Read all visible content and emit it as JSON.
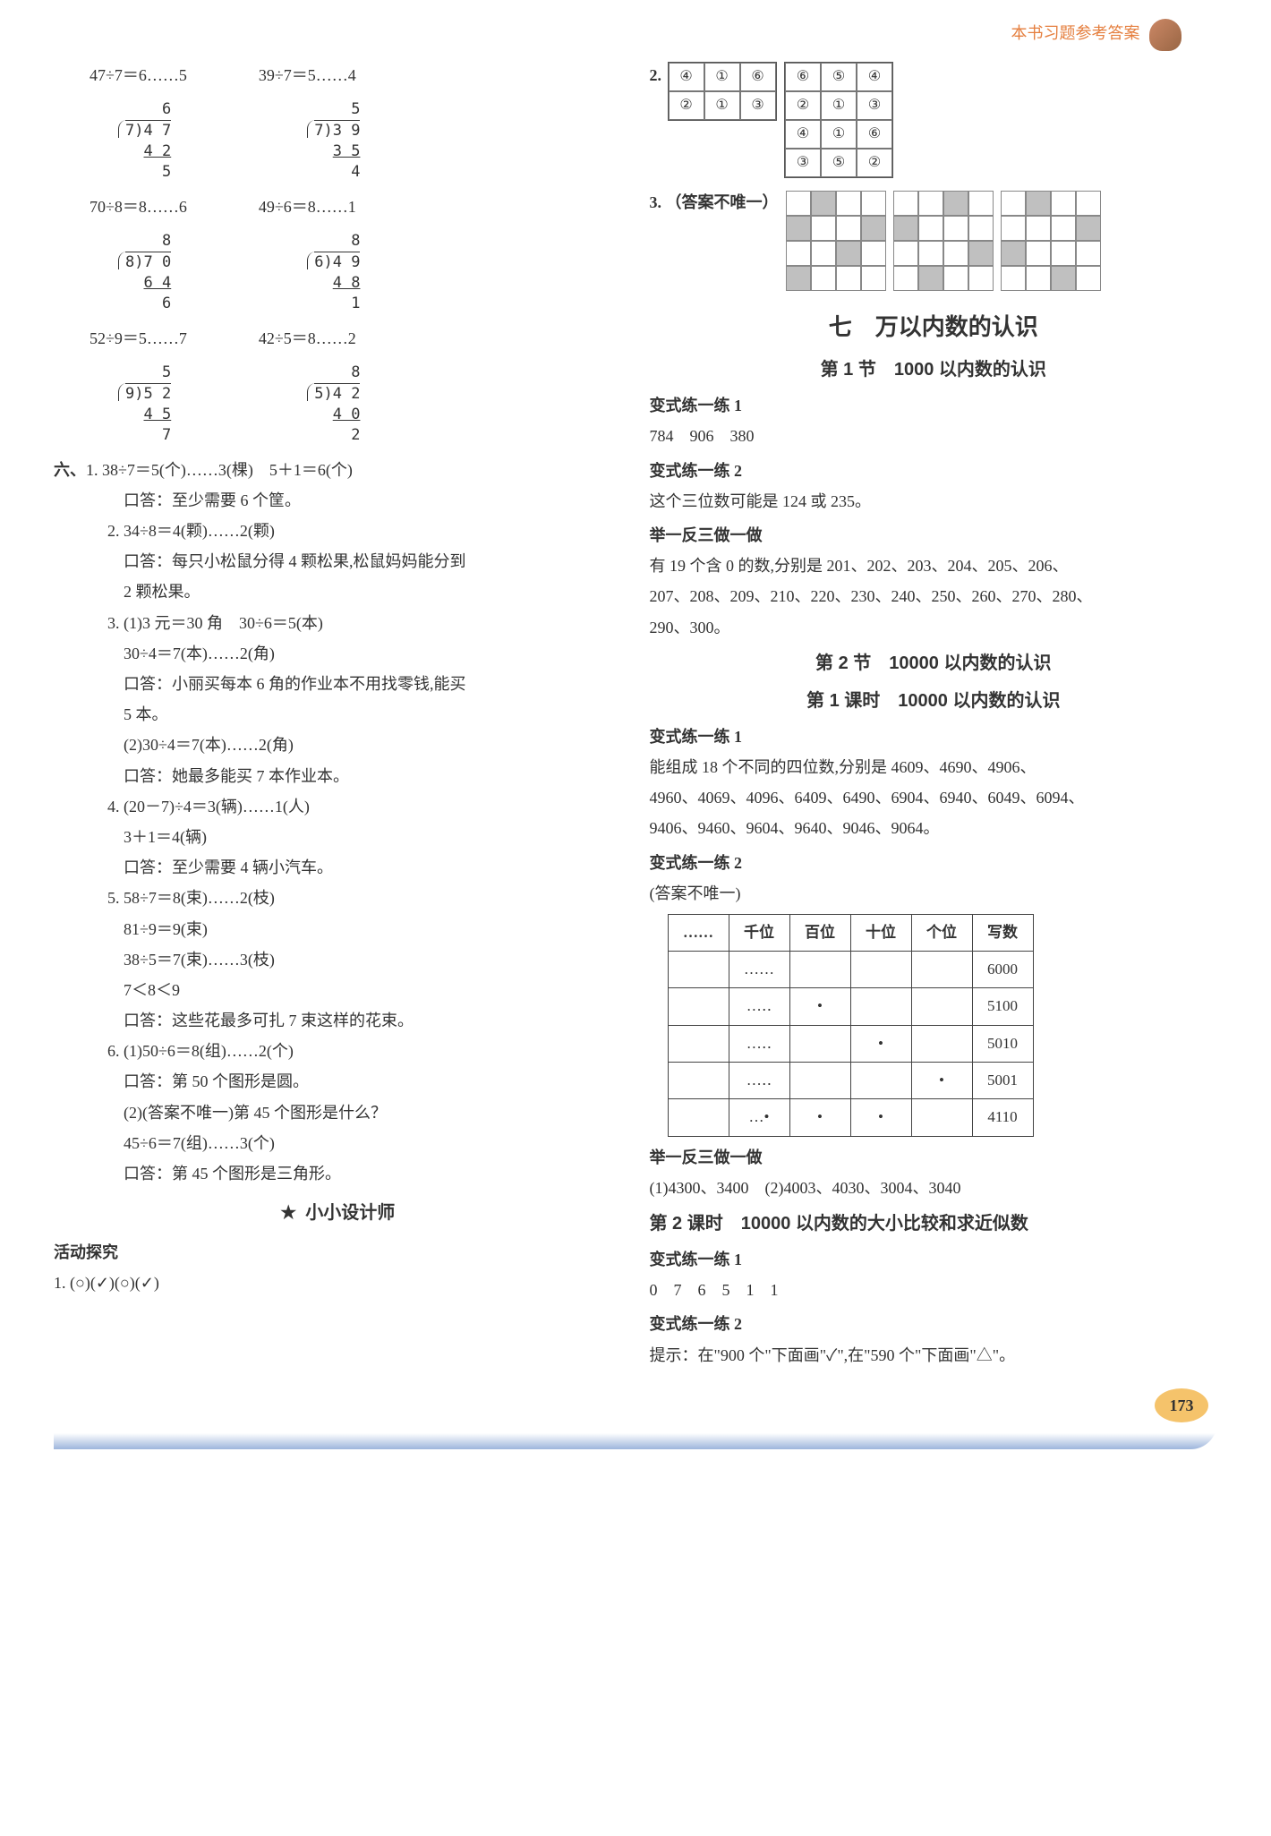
{
  "header": {
    "text": "本书习题参考答案"
  },
  "left": {
    "divRow1": {
      "a": "47÷7＝6……5",
      "b": "39÷7＝5……4"
    },
    "ld1a": {
      "q": "6",
      "dv": "7",
      "dd": "4 7",
      "s": "4 2",
      "r": "5"
    },
    "ld1b": {
      "q": "5",
      "dv": "7",
      "dd": "3 9",
      "s": "3 5",
      "r": "4"
    },
    "divRow2": {
      "a": "70÷8＝8……6",
      "b": "49÷6＝8……1"
    },
    "ld2a": {
      "q": "8",
      "dv": "8",
      "dd": "7 0",
      "s": "6 4",
      "r": "6"
    },
    "ld2b": {
      "q": "8",
      "dv": "6",
      "dd": "4 9",
      "s": "4 8",
      "r": "1"
    },
    "divRow3": {
      "a": "52÷9＝5……7",
      "b": "42÷5＝8……2"
    },
    "ld3a": {
      "q": "5",
      "dv": "9",
      "dd": "5 2",
      "s": "4 5",
      "r": "7"
    },
    "ld3b": {
      "q": "8",
      "dv": "5",
      "dd": "4 2",
      "s": "4 0",
      "r": "2"
    },
    "six": {
      "label": "六、",
      "q1a": "1. 38÷7＝5(个)……3(棵)　5＋1＝6(个)",
      "q1b": "口答：至少需要 6 个筐。",
      "q2a": "2. 34÷8＝4(颗)……2(颗)",
      "q2b": "口答：每只小松鼠分得 4 颗松果,松鼠妈妈能分到",
      "q2c": "2 颗松果。",
      "q3a": "3. (1)3 元＝30 角　30÷6＝5(本)",
      "q3b": "30÷4＝7(本)……2(角)",
      "q3c": "口答：小丽买每本 6 角的作业本不用找零钱,能买",
      "q3d": "5 本。",
      "q3e": "(2)30÷4＝7(本)……2(角)",
      "q3f": "口答：她最多能买 7 本作业本。",
      "q4a": "4. (20－7)÷4＝3(辆)……1(人)",
      "q4b": "3＋1＝4(辆)",
      "q4c": "口答：至少需要 4 辆小汽车。",
      "q5a": "5. 58÷7＝8(束)……2(枝)",
      "q5b": "81÷9＝9(束)",
      "q5c": "38÷5＝7(束)……3(枝)",
      "q5d": "7＜8＜9",
      "q5e": "口答：这些花最多可扎 7 束这样的花束。",
      "q6a": "6. (1)50÷6＝8(组)……2(个)",
      "q6b": "口答：第 50 个图形是圆。",
      "q6c": "(2)(答案不唯一)第 45 个图形是什么？",
      "q6d": "45÷6＝7(组)……3(个)",
      "q6e": "口答：第 45 个图形是三角形。"
    },
    "designTitle": "小小设计师",
    "activityLabel": "活动探究",
    "act1": "1. (○)(✓)(○)(✓)"
  },
  "right": {
    "q2label": "2.",
    "grid1": [
      [
        "④",
        "①",
        "⑥"
      ],
      [
        "②",
        "①",
        "③"
      ]
    ],
    "grid2": [
      [
        "⑥",
        "⑤",
        "④"
      ],
      [
        "②",
        "①",
        "③"
      ],
      [
        "④",
        "①",
        "⑥"
      ],
      [
        "③",
        "⑤",
        "②"
      ]
    ],
    "q3label": "3. （答案不唯一）",
    "pattern_colors": {
      "p1": [
        [
          0,
          1,
          0,
          0
        ],
        [
          1,
          0,
          0,
          1
        ],
        [
          0,
          0,
          1,
          0
        ],
        [
          1,
          0,
          0,
          0
        ]
      ],
      "p2": [
        [
          0,
          0,
          1,
          0
        ],
        [
          1,
          0,
          0,
          0
        ],
        [
          0,
          0,
          0,
          1
        ],
        [
          0,
          1,
          0,
          0
        ]
      ],
      "p3": [
        [
          0,
          1,
          0,
          0
        ],
        [
          0,
          0,
          0,
          1
        ],
        [
          1,
          0,
          0,
          0
        ],
        [
          0,
          0,
          1,
          0
        ]
      ]
    },
    "chapterTitle": "七　万以内数的认识",
    "sec1Title": "第 1 节　1000 以内数的认识",
    "v1Label": "变式练一练 1",
    "v1": "784　906　380",
    "v2Label": "变式练一练 2",
    "v2": "这个三位数可能是 124 或 235。",
    "j1Label": "举一反三做一做",
    "j1a": "有 19 个含 0 的数,分别是 201、202、203、204、205、206、",
    "j1b": "207、208、209、210、220、230、240、250、260、270、280、",
    "j1c": "290、300。",
    "sec2Title": "第 2 节　10000 以内数的认识",
    "les1Title": "第 1 课时　10000 以内数的认识",
    "v21Label": "变式练一练 1",
    "v21a": "能组成 18 个不同的四位数,分别是 4609、4690、4906、",
    "v21b": "4960、4069、4096、6409、6490、6904、6940、6049、6094、",
    "v21c": "9406、9460、9604、9640、9046、9064。",
    "v22Label": "变式练一练 2",
    "v22a": "(答案不唯一)",
    "table": {
      "headers": [
        "……",
        "千位",
        "百位",
        "十位",
        "个位",
        "写数"
      ],
      "rows": [
        [
          "",
          "……",
          "",
          "",
          "",
          "6000"
        ],
        [
          "",
          "…‥",
          "•",
          "",
          "",
          "5100"
        ],
        [
          "",
          "…‥",
          "",
          "•",
          "",
          "5010"
        ],
        [
          "",
          "…‥",
          "",
          "",
          "•",
          "5001"
        ],
        [
          "",
          "…•",
          "•",
          "•",
          "",
          "4110"
        ]
      ]
    },
    "j2Label": "举一反三做一做",
    "j2": "(1)4300、3400　(2)4003、4030、3004、3040",
    "les2Title": "第 2 课时　10000 以内数的大小比较和求近似数",
    "v31Label": "变式练一练 1",
    "v31": "0　7　6　5　1　1",
    "v32Label": "变式练一练 2",
    "v32": "提示：在\"900 个\"下面画\"✓\",在\"590 个\"下面画\"△\"。"
  },
  "pageNum": "173"
}
